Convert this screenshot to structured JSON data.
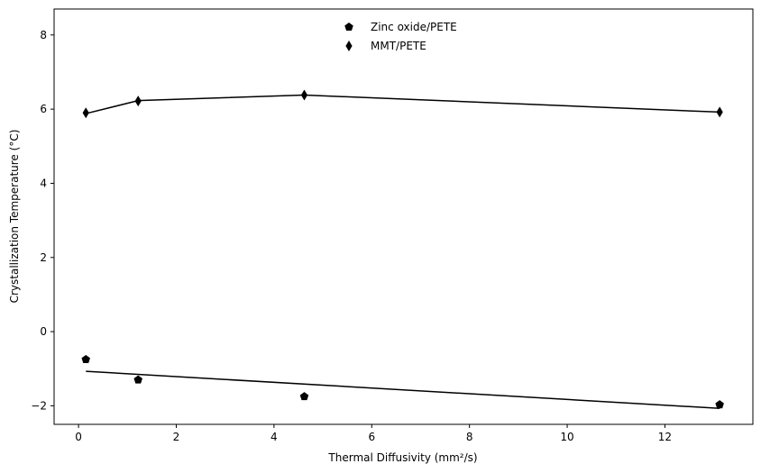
{
  "chart_data": {
    "type": "scatter",
    "xlabel": "Thermal Diffusivity (mm²/s)",
    "ylabel": "Crystallization Temperature (°C)",
    "xlim": [
      -0.5,
      13.8
    ],
    "ylim": [
      -2.5,
      8.7
    ],
    "xticks": [
      0,
      2,
      4,
      6,
      8,
      10,
      12
    ],
    "yticks": [
      -2,
      0,
      2,
      4,
      6,
      8
    ],
    "grid": false,
    "legend_position": "top-center",
    "series": [
      {
        "name": "Zinc oxide/PETE",
        "marker": "pentagon",
        "color": "#000000",
        "x": [
          0.15,
          1.22,
          4.62,
          13.12
        ],
        "y": [
          -0.75,
          -1.3,
          -1.75,
          -1.97
        ],
        "fit_line": {
          "x": [
            0.15,
            13.12
          ],
          "y": [
            -1.07,
            -2.07
          ]
        }
      },
      {
        "name": "MMT/PETE",
        "marker": "thin-diamond",
        "color": "#000000",
        "x": [
          0.15,
          1.22,
          4.62,
          13.12
        ],
        "y": [
          5.9,
          6.22,
          6.38,
          5.92
        ],
        "fit_line": {
          "x": [
            0.15,
            1.22,
            4.62,
            13.12
          ],
          "y": [
            5.88,
            6.23,
            6.38,
            5.92
          ]
        }
      }
    ]
  }
}
